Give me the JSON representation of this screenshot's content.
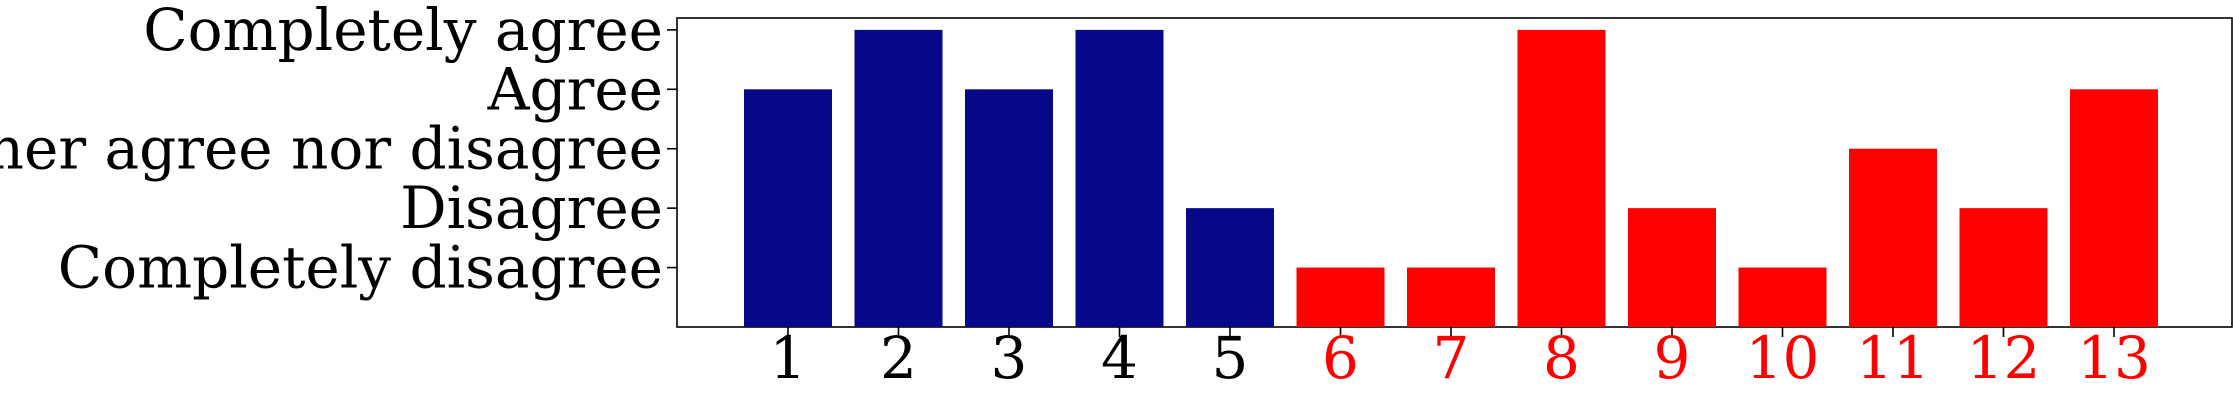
{
  "chart_data": {
    "type": "bar",
    "categories": [
      "1",
      "2",
      "3",
      "4",
      "5",
      "6",
      "7",
      "8",
      "9",
      "10",
      "11",
      "12",
      "13"
    ],
    "values": [
      4,
      5,
      4,
      5,
      2,
      1,
      1,
      5,
      2,
      1,
      3,
      2,
      4
    ],
    "y_tick_values": [
      1,
      2,
      3,
      4,
      5
    ],
    "y_tick_labels": [
      "Completely disagree",
      "Disagree",
      "Neither agree nor disagree",
      "Agree",
      "Completely agree"
    ],
    "ylim": [
      0,
      5.2
    ],
    "grid": false,
    "colors": {
      "group_a": "#07078a",
      "group_b": "#ff0000",
      "group_a_label": "#000000",
      "group_b_label": "#ff0000"
    },
    "bar_groups": [
      "group_a",
      "group_a",
      "group_a",
      "group_a",
      "group_a",
      "group_b",
      "group_b",
      "group_b",
      "group_b",
      "group_b",
      "group_b",
      "group_b",
      "group_b"
    ]
  }
}
